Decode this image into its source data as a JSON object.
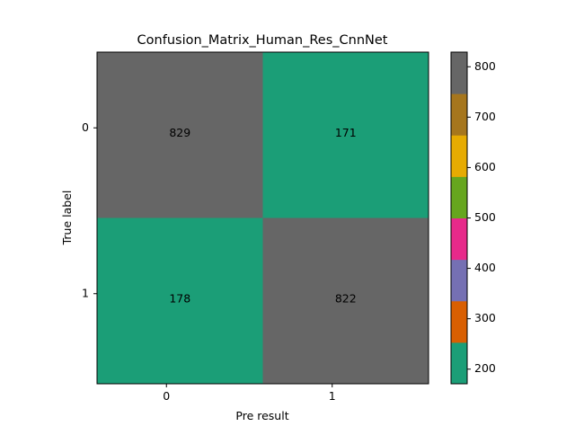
{
  "chart_data": {
    "type": "heatmap",
    "title": "Confusion_Matrix_Human_Res_CnnNet",
    "xlabel": "Pre result",
    "ylabel": "True label",
    "x_categories": [
      "0",
      "1"
    ],
    "y_categories": [
      "0",
      "1"
    ],
    "values": [
      [
        829,
        171
      ],
      [
        178,
        822
      ]
    ],
    "colorbar": {
      "vmin": 171,
      "vmax": 829,
      "ticks": [
        200,
        300,
        400,
        500,
        600,
        700,
        800
      ],
      "tick_labels": [
        "200",
        "300",
        "400",
        "500",
        "600",
        "700",
        "800"
      ],
      "colormap": "Dark2",
      "colors": [
        "#1b9e77",
        "#d95f02",
        "#7570b3",
        "#e7298a",
        "#66a61e",
        "#e6ab02",
        "#a6761d",
        "#666666"
      ]
    },
    "grid": false,
    "legend": "colorbar-right"
  }
}
